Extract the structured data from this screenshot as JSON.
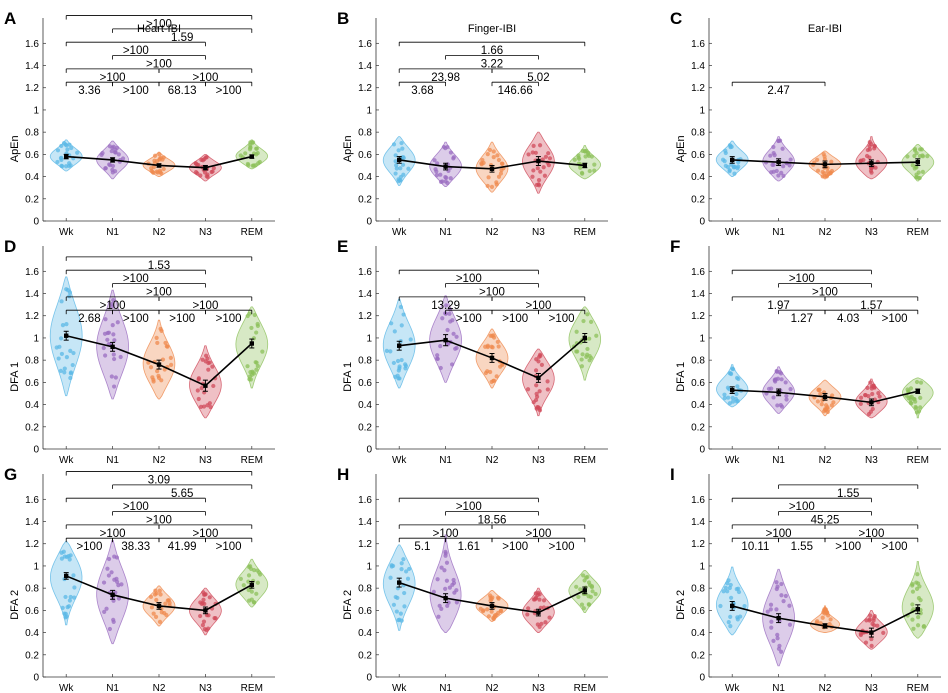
{
  "figure": {
    "categories": [
      "Wk",
      "N1",
      "N2",
      "N3",
      "REM"
    ],
    "category_colors": [
      "#5bb8e6",
      "#9a6cc0",
      "#ef8a4d",
      "#d04a5a",
      "#8cc05a"
    ],
    "y_ticks": [
      "0",
      "0.2",
      "0.4",
      "0.6",
      "0.8",
      "1",
      "1.2",
      "1.4",
      "1.6"
    ]
  },
  "chart_data": [
    {
      "type": "violin",
      "panel": "A",
      "title": "Heart-IBI",
      "ylabel": "ApEn",
      "ylim": [
        0,
        1.6
      ],
      "categories": [
        "Wk",
        "N1",
        "N2",
        "N3",
        "REM"
      ],
      "means": [
        0.58,
        0.55,
        0.5,
        0.48,
        0.58
      ],
      "sem": [
        0.02,
        0.02,
        0.015,
        0.02,
        0.015
      ],
      "ranges": [
        [
          0.45,
          0.73
        ],
        [
          0.38,
          0.72
        ],
        [
          0.4,
          0.62
        ],
        [
          0.36,
          0.6
        ],
        [
          0.47,
          0.73
        ]
      ],
      "bayes_factors": [
        {
          "from": "N1",
          "to": "N3",
          "label": ">100"
        },
        {
          "from": "N1",
          "to": "N2",
          "label": ">100"
        },
        {
          "from": "N2",
          "to": "N3",
          "label": "68.13"
        },
        {
          "from": "Wk",
          "to": "N3",
          "label": ">100"
        },
        {
          "from": "Wk",
          "to": "REM",
          "label": ">100"
        },
        {
          "from": "N3",
          "to": "REM",
          "label": ">100"
        },
        {
          "from": "Wk",
          "to": "N2",
          "label": ">100"
        },
        {
          "from": "N2",
          "to": "REM",
          "label": ">100"
        },
        {
          "from": "Wk",
          "to": "N1",
          "label": "3.36"
        },
        {
          "from": "N1",
          "to": "REM",
          "label": "1.59"
        }
      ]
    },
    {
      "type": "violin",
      "panel": "B",
      "title": "Finger-IBI",
      "ylabel": "ApEn",
      "ylim": [
        0,
        1.6
      ],
      "categories": [
        "Wk",
        "N1",
        "N2",
        "N3",
        "REM"
      ],
      "means": [
        0.55,
        0.49,
        0.47,
        0.54,
        0.5
      ],
      "sem": [
        0.03,
        0.03,
        0.03,
        0.04,
        0.02
      ],
      "ranges": [
        [
          0.32,
          0.76
        ],
        [
          0.31,
          0.71
        ],
        [
          0.26,
          0.71
        ],
        [
          0.25,
          0.8
        ],
        [
          0.38,
          0.68
        ]
      ],
      "bayes_factors": [
        {
          "from": "N2",
          "to": "N3",
          "label": "146.66"
        },
        {
          "from": "Wk",
          "to": "REM",
          "label": "1.66"
        },
        {
          "from": "Wk",
          "to": "N2",
          "label": "23.98"
        },
        {
          "from": "N2",
          "to": "REM",
          "label": "5.02"
        },
        {
          "from": "Wk",
          "to": "N1",
          "label": "3.68"
        },
        {
          "from": "N1",
          "to": "N3",
          "label": "3.22"
        }
      ]
    },
    {
      "type": "violin",
      "panel": "C",
      "title": "Ear-IBI",
      "ylabel": "ApEn",
      "ylim": [
        0,
        1.6
      ],
      "categories": [
        "Wk",
        "N1",
        "N2",
        "N3",
        "REM"
      ],
      "means": [
        0.55,
        0.53,
        0.51,
        0.52,
        0.53
      ],
      "sem": [
        0.03,
        0.03,
        0.03,
        0.03,
        0.03
      ],
      "ranges": [
        [
          0.4,
          0.72
        ],
        [
          0.36,
          0.76
        ],
        [
          0.38,
          0.63
        ],
        [
          0.38,
          0.76
        ],
        [
          0.36,
          0.69
        ]
      ],
      "bayes_factors": [
        {
          "from": "Wk",
          "to": "N2",
          "label": "2.47"
        }
      ]
    },
    {
      "type": "violin",
      "panel": "D",
      "title": "",
      "ylabel": "DFA 1",
      "ylim": [
        0,
        1.6
      ],
      "categories": [
        "Wk",
        "N1",
        "N2",
        "N3",
        "REM"
      ],
      "means": [
        1.02,
        0.92,
        0.76,
        0.57,
        0.95
      ],
      "sem": [
        0.04,
        0.04,
        0.04,
        0.05,
        0.04
      ],
      "ranges": [
        [
          0.48,
          1.55
        ],
        [
          0.45,
          1.43
        ],
        [
          0.45,
          1.16
        ],
        [
          0.28,
          0.93
        ],
        [
          0.55,
          1.28
        ]
      ],
      "bayes_factors": [
        {
          "from": "N1",
          "to": "N3",
          "label": ">100"
        },
        {
          "from": "N1",
          "to": "N2",
          "label": ">100"
        },
        {
          "from": "N2",
          "to": "N3",
          "label": ">100"
        },
        {
          "from": "Wk",
          "to": "REM",
          "label": "1.53"
        },
        {
          "from": "Wk",
          "to": "N3",
          "label": ">100"
        },
        {
          "from": "N3",
          "to": "REM",
          "label": ">100"
        },
        {
          "from": "Wk",
          "to": "N2",
          "label": ">100"
        },
        {
          "from": "N2",
          "to": "REM",
          "label": ">100"
        },
        {
          "from": "Wk",
          "to": "N1",
          "label": "2.68"
        }
      ]
    },
    {
      "type": "violin",
      "panel": "E",
      "title": "",
      "ylabel": "DFA 1",
      "ylim": [
        0,
        1.6
      ],
      "categories": [
        "Wk",
        "N1",
        "N2",
        "N3",
        "REM"
      ],
      "means": [
        0.93,
        0.98,
        0.82,
        0.64,
        1.0
      ],
      "sem": [
        0.04,
        0.05,
        0.04,
        0.04,
        0.04
      ],
      "ranges": [
        [
          0.55,
          1.35
        ],
        [
          0.6,
          1.38
        ],
        [
          0.55,
          1.08
        ],
        [
          0.3,
          0.9
        ],
        [
          0.62,
          1.28
        ]
      ],
      "bayes_factors": [
        {
          "from": "N1",
          "to": "N3",
          "label": ">100"
        },
        {
          "from": "N1",
          "to": "N2",
          "label": ">100"
        },
        {
          "from": "N2",
          "to": "N3",
          "label": ">100"
        },
        {
          "from": "Wk",
          "to": "N3",
          "label": ">100"
        },
        {
          "from": "N3",
          "to": "REM",
          "label": ">100"
        },
        {
          "from": "Wk",
          "to": "N2",
          "label": "13.29"
        },
        {
          "from": "N2",
          "to": "REM",
          "label": ">100"
        }
      ]
    },
    {
      "type": "violin",
      "panel": "F",
      "title": "",
      "ylabel": "DFA 1",
      "ylim": [
        0,
        1.6
      ],
      "categories": [
        "Wk",
        "N1",
        "N2",
        "N3",
        "REM"
      ],
      "means": [
        0.53,
        0.51,
        0.47,
        0.42,
        0.52
      ],
      "sem": [
        0.03,
        0.03,
        0.03,
        0.03,
        0.02
      ],
      "ranges": [
        [
          0.38,
          0.76
        ],
        [
          0.32,
          0.74
        ],
        [
          0.3,
          0.62
        ],
        [
          0.28,
          0.63
        ],
        [
          0.28,
          0.64
        ]
      ],
      "bayes_factors": [
        {
          "from": "N1",
          "to": "N3",
          "label": ">100"
        },
        {
          "from": "N1",
          "to": "N2",
          "label": "1.27"
        },
        {
          "from": "N2",
          "to": "N3",
          "label": "4.03"
        },
        {
          "from": "Wk",
          "to": "N3",
          "label": ">100"
        },
        {
          "from": "N3",
          "to": "REM",
          "label": ">100"
        },
        {
          "from": "Wk",
          "to": "N2",
          "label": "1.97"
        },
        {
          "from": "N2",
          "to": "REM",
          "label": "1.57"
        }
      ]
    },
    {
      "type": "violin",
      "panel": "G",
      "title": "",
      "ylabel": "DFA 2",
      "ylim": [
        0,
        1.6
      ],
      "categories": [
        "Wk",
        "N1",
        "N2",
        "N3",
        "REM"
      ],
      "means": [
        0.91,
        0.74,
        0.64,
        0.6,
        0.83
      ],
      "sem": [
        0.03,
        0.04,
        0.03,
        0.03,
        0.03
      ],
      "ranges": [
        [
          0.47,
          1.22
        ],
        [
          0.3,
          1.23
        ],
        [
          0.46,
          0.82
        ],
        [
          0.38,
          0.8
        ],
        [
          0.63,
          1.06
        ]
      ],
      "bayes_factors": [
        {
          "from": "N1",
          "to": "N3",
          "label": ">100"
        },
        {
          "from": "N1",
          "to": "N2",
          "label": "38.33"
        },
        {
          "from": "N2",
          "to": "N3",
          "label": "41.99"
        },
        {
          "from": "Wk",
          "to": "REM",
          "label": "3.09"
        },
        {
          "from": "Wk",
          "to": "N3",
          "label": ">100"
        },
        {
          "from": "N3",
          "to": "REM",
          "label": ">100"
        },
        {
          "from": "Wk",
          "to": "N2",
          "label": ">100"
        },
        {
          "from": "N2",
          "to": "REM",
          "label": ">100"
        },
        {
          "from": "Wk",
          "to": "N1",
          "label": ">100"
        },
        {
          "from": "N1",
          "to": "REM",
          "label": "5.65"
        }
      ]
    },
    {
      "type": "violin",
      "panel": "H",
      "title": "",
      "ylabel": "DFA 2",
      "ylim": [
        0,
        1.6
      ],
      "categories": [
        "Wk",
        "N1",
        "N2",
        "N3",
        "REM"
      ],
      "means": [
        0.85,
        0.71,
        0.64,
        0.58,
        0.78
      ],
      "sem": [
        0.04,
        0.04,
        0.03,
        0.03,
        0.03
      ],
      "ranges": [
        [
          0.42,
          1.19
        ],
        [
          0.4,
          1.28
        ],
        [
          0.5,
          0.78
        ],
        [
          0.4,
          0.8
        ],
        [
          0.58,
          0.96
        ]
      ],
      "bayes_factors": [
        {
          "from": "N1",
          "to": "N3",
          "label": "18.56"
        },
        {
          "from": "N1",
          "to": "N2",
          "label": "1.61"
        },
        {
          "from": "N2",
          "to": "N3",
          "label": ">100"
        },
        {
          "from": "Wk",
          "to": "N3",
          "label": ">100"
        },
        {
          "from": "N3",
          "to": "REM",
          "label": ">100"
        },
        {
          "from": "Wk",
          "to": "N2",
          "label": ">100"
        },
        {
          "from": "N2",
          "to": "REM",
          "label": ">100"
        },
        {
          "from": "Wk",
          "to": "N1",
          "label": "5.1"
        }
      ]
    },
    {
      "type": "violin",
      "panel": "I",
      "title": "",
      "ylabel": "DFA 2",
      "ylim": [
        0,
        1.6
      ],
      "categories": [
        "Wk",
        "N1",
        "N2",
        "N3",
        "REM"
      ],
      "means": [
        0.64,
        0.53,
        0.46,
        0.4,
        0.61
      ],
      "sem": [
        0.04,
        0.04,
        0.02,
        0.04,
        0.04
      ],
      "ranges": [
        [
          0.38,
          0.99
        ],
        [
          0.1,
          0.97
        ],
        [
          0.4,
          0.64
        ],
        [
          0.25,
          0.6
        ],
        [
          0.35,
          1.04
        ]
      ],
      "bayes_factors": [
        {
          "from": "N1",
          "to": "N3",
          "label": "45.25"
        },
        {
          "from": "N1",
          "to": "N2",
          "label": "1.55"
        },
        {
          "from": "N2",
          "to": "N3",
          "label": ">100"
        },
        {
          "from": "Wk",
          "to": "N3",
          "label": ">100"
        },
        {
          "from": "N3",
          "to": "REM",
          "label": ">100"
        },
        {
          "from": "Wk",
          "to": "N2",
          "label": ">100"
        },
        {
          "from": "N2",
          "to": "REM",
          "label": ">100"
        },
        {
          "from": "Wk",
          "to": "N1",
          "label": "10.11"
        },
        {
          "from": "N1",
          "to": "REM",
          "label": "1.55"
        }
      ]
    }
  ]
}
